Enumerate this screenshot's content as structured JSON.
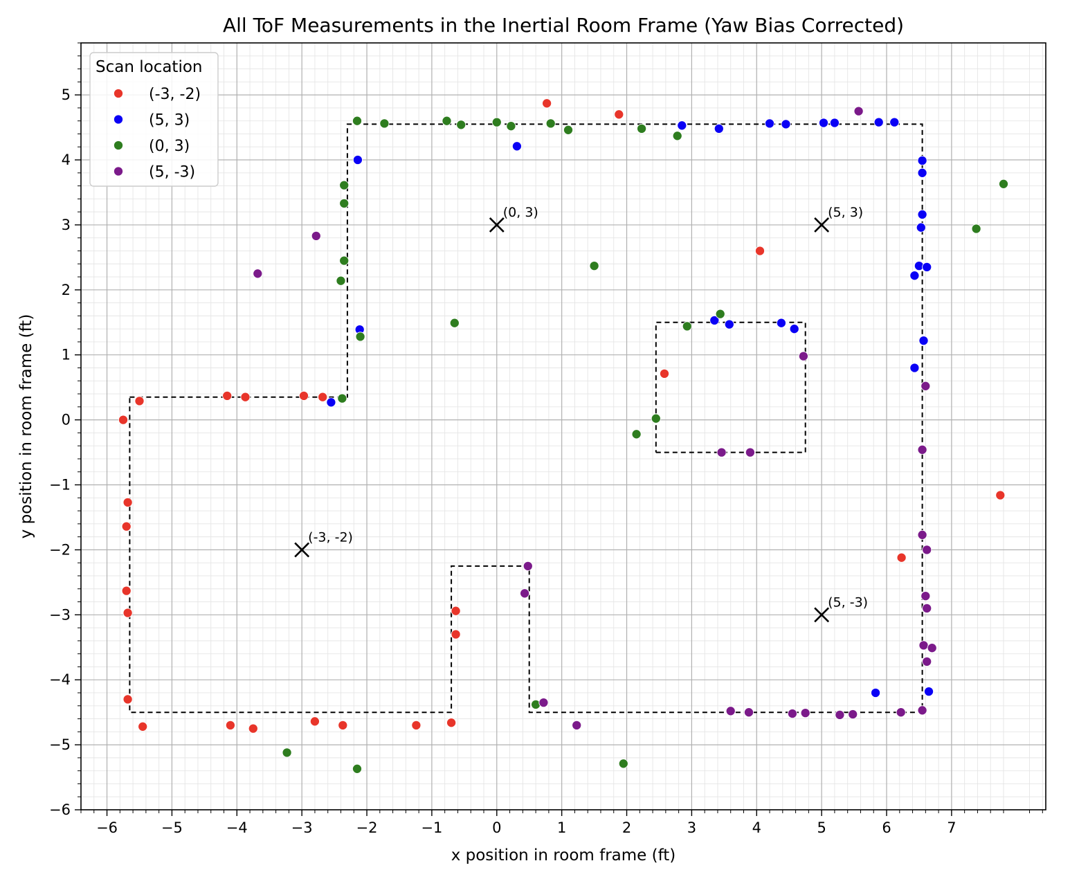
{
  "chart_data": {
    "type": "scatter",
    "title": "All ToF Measurements in the Inertial Room Frame (Yaw Bias Corrected)",
    "xlabel": "x position in room frame (ft)",
    "ylabel": "y position in room frame (ft)",
    "xlim": [
      -6.4,
      8.45
    ],
    "ylim": [
      -6,
      5.8
    ],
    "xticks": [
      -6,
      -5,
      -4,
      -3,
      -2,
      -1,
      0,
      1,
      2,
      3,
      4,
      5,
      6,
      7
    ],
    "yticks": [
      -6,
      -5,
      -4,
      -3,
      -2,
      -1,
      0,
      1,
      2,
      3,
      4,
      5
    ],
    "tick_labels_x": [
      "−6",
      "−5",
      "−4",
      "−3",
      "−2",
      "−1",
      "0",
      "1",
      "2",
      "3",
      "4",
      "5",
      "6",
      "7"
    ],
    "tick_labels_y": [
      "−6",
      "−5",
      "−4",
      "−3",
      "−2",
      "−1",
      "0",
      "1",
      "2",
      "3",
      "4",
      "5"
    ],
    "minor_step": 0.2,
    "grid": true,
    "legend": {
      "title": "Scan location",
      "placement": "top-left"
    },
    "series": [
      {
        "name": "(-3, -2)",
        "color": "#e8352a",
        "points": [
          [
            -5.75,
            0.0
          ],
          [
            -5.5,
            0.29
          ],
          [
            -4.15,
            0.37
          ],
          [
            -3.87,
            0.35
          ],
          [
            -2.97,
            0.37
          ],
          [
            -2.68,
            0.35
          ],
          [
            -5.68,
            -1.27
          ],
          [
            -5.7,
            -1.64
          ],
          [
            -5.7,
            -2.63
          ],
          [
            -5.68,
            -2.97
          ],
          [
            -5.68,
            -4.3
          ],
          [
            -5.45,
            -4.72
          ],
          [
            -4.1,
            -4.7
          ],
          [
            -3.75,
            -4.75
          ],
          [
            -2.8,
            -4.64
          ],
          [
            -2.37,
            -4.7
          ],
          [
            -1.24,
            -4.7
          ],
          [
            -0.7,
            -4.66
          ],
          [
            -0.63,
            -2.94
          ],
          [
            -0.63,
            -3.3
          ],
          [
            0.77,
            4.87
          ],
          [
            1.88,
            4.7
          ],
          [
            2.58,
            0.71
          ],
          [
            4.05,
            2.6
          ],
          [
            6.23,
            -2.12
          ],
          [
            7.75,
            -1.16
          ]
        ]
      },
      {
        "name": "(5, 3)",
        "color": "#0a00f5",
        "points": [
          [
            -2.55,
            0.27
          ],
          [
            -2.14,
            4.0
          ],
          [
            -2.11,
            1.39
          ],
          [
            0.31,
            4.21
          ],
          [
            2.85,
            4.53
          ],
          [
            3.42,
            4.48
          ],
          [
            4.2,
            4.56
          ],
          [
            4.45,
            4.55
          ],
          [
            5.03,
            4.57
          ],
          [
            5.2,
            4.57
          ],
          [
            5.88,
            4.58
          ],
          [
            6.12,
            4.58
          ],
          [
            6.55,
            3.99
          ],
          [
            6.55,
            3.8
          ],
          [
            6.55,
            3.16
          ],
          [
            6.53,
            2.96
          ],
          [
            6.5,
            2.37
          ],
          [
            6.62,
            2.35
          ],
          [
            6.43,
            2.22
          ],
          [
            6.57,
            1.22
          ],
          [
            6.43,
            0.8
          ],
          [
            3.35,
            1.53
          ],
          [
            3.58,
            1.47
          ],
          [
            4.38,
            1.49
          ],
          [
            4.58,
            1.4
          ],
          [
            5.83,
            -4.2
          ],
          [
            6.65,
            -4.18
          ]
        ]
      },
      {
        "name": "(0, 3)",
        "color": "#2e7d1f",
        "points": [
          [
            -2.15,
            4.6
          ],
          [
            -1.73,
            4.56
          ],
          [
            -0.77,
            4.6
          ],
          [
            -0.55,
            4.54
          ],
          [
            0.0,
            4.58
          ],
          [
            0.22,
            4.52
          ],
          [
            0.83,
            4.56
          ],
          [
            1.1,
            4.46
          ],
          [
            2.23,
            4.48
          ],
          [
            2.78,
            4.37
          ],
          [
            -2.35,
            3.61
          ],
          [
            -2.35,
            3.33
          ],
          [
            -2.35,
            2.45
          ],
          [
            -2.4,
            2.14
          ],
          [
            -2.1,
            1.28
          ],
          [
            -2.38,
            0.33
          ],
          [
            -0.65,
            1.49
          ],
          [
            1.5,
            2.37
          ],
          [
            2.93,
            1.44
          ],
          [
            3.44,
            1.63
          ],
          [
            2.45,
            0.02
          ],
          [
            2.15,
            -0.22
          ],
          [
            0.6,
            -4.38
          ],
          [
            -3.23,
            -5.12
          ],
          [
            -2.15,
            -5.37
          ],
          [
            1.95,
            -5.29
          ],
          [
            7.38,
            2.94
          ],
          [
            7.8,
            3.63
          ]
        ]
      },
      {
        "name": "(5, -3)",
        "color": "#7b1a8a",
        "points": [
          [
            -2.78,
            2.83
          ],
          [
            -3.68,
            2.25
          ],
          [
            5.57,
            4.75
          ],
          [
            4.72,
            0.98
          ],
          [
            3.46,
            -0.5
          ],
          [
            3.9,
            -0.5
          ],
          [
            6.6,
            0.52
          ],
          [
            6.55,
            -0.46
          ],
          [
            6.55,
            -1.77
          ],
          [
            6.62,
            -2.0
          ],
          [
            6.6,
            -2.71
          ],
          [
            6.62,
            -2.9
          ],
          [
            6.57,
            -3.47
          ],
          [
            6.7,
            -3.51
          ],
          [
            6.62,
            -3.72
          ],
          [
            6.55,
            -4.47
          ],
          [
            6.22,
            -4.5
          ],
          [
            5.48,
            -4.53
          ],
          [
            5.28,
            -4.54
          ],
          [
            4.75,
            -4.51
          ],
          [
            4.55,
            -4.52
          ],
          [
            3.88,
            -4.5
          ],
          [
            3.6,
            -4.48
          ],
          [
            0.72,
            -4.35
          ],
          [
            1.23,
            -4.7
          ],
          [
            0.48,
            -2.25
          ],
          [
            0.43,
            -2.67
          ]
        ]
      }
    ],
    "walls": [
      [
        [
          -5.65,
          0.35
        ],
        [
          -2.3,
          0.35
        ],
        [
          -2.3,
          4.55
        ],
        [
          6.55,
          4.55
        ],
        [
          6.55,
          -4.5
        ],
        [
          0.5,
          -4.5
        ],
        [
          0.5,
          -2.25
        ],
        [
          -0.7,
          -2.25
        ],
        [
          -0.7,
          -4.5
        ],
        [
          -5.65,
          -4.5
        ],
        [
          -5.65,
          0.35
        ]
      ],
      [
        [
          2.45,
          -0.5
        ],
        [
          4.75,
          -0.5
        ],
        [
          4.75,
          1.5
        ],
        [
          2.45,
          1.5
        ],
        [
          2.45,
          -0.5
        ]
      ]
    ],
    "scan_locations": [
      {
        "x": -3,
        "y": -2,
        "label": "(-3, -2)"
      },
      {
        "x": 0,
        "y": 3,
        "label": "(0, 3)"
      },
      {
        "x": 5,
        "y": 3,
        "label": "(5, 3)"
      },
      {
        "x": 5,
        "y": -3,
        "label": "(5, -3)"
      }
    ]
  }
}
